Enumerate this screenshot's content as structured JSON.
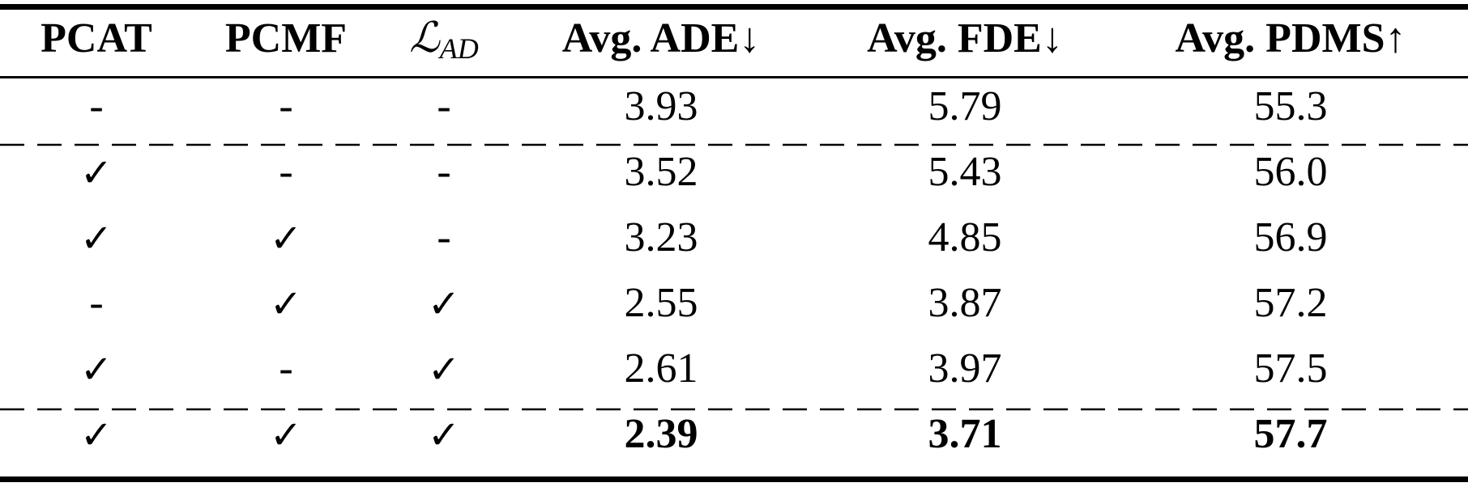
{
  "table": {
    "header": [
      "PCAT",
      "PCMF",
      {
        "symbol": "ℒ",
        "subscript": "AD"
      },
      "Avg. ADE↓",
      "Avg. FDE↓",
      "Avg. PDMS↑"
    ],
    "rows": [
      [
        "-",
        "-",
        "-",
        "3.93",
        "5.79",
        "55.3"
      ],
      [
        "✓",
        "-",
        "-",
        "3.52",
        "5.43",
        "56.0"
      ],
      [
        "✓",
        "✓",
        "-",
        "3.23",
        "4.85",
        "56.9"
      ],
      [
        "-",
        "✓",
        "✓",
        "2.55",
        "3.87",
        "57.2"
      ],
      [
        "✓",
        "-",
        "✓",
        "2.61",
        "3.97",
        "57.5"
      ],
      [
        "✓",
        "✓",
        "✓",
        "2.39",
        "3.71",
        "57.7"
      ]
    ]
  }
}
